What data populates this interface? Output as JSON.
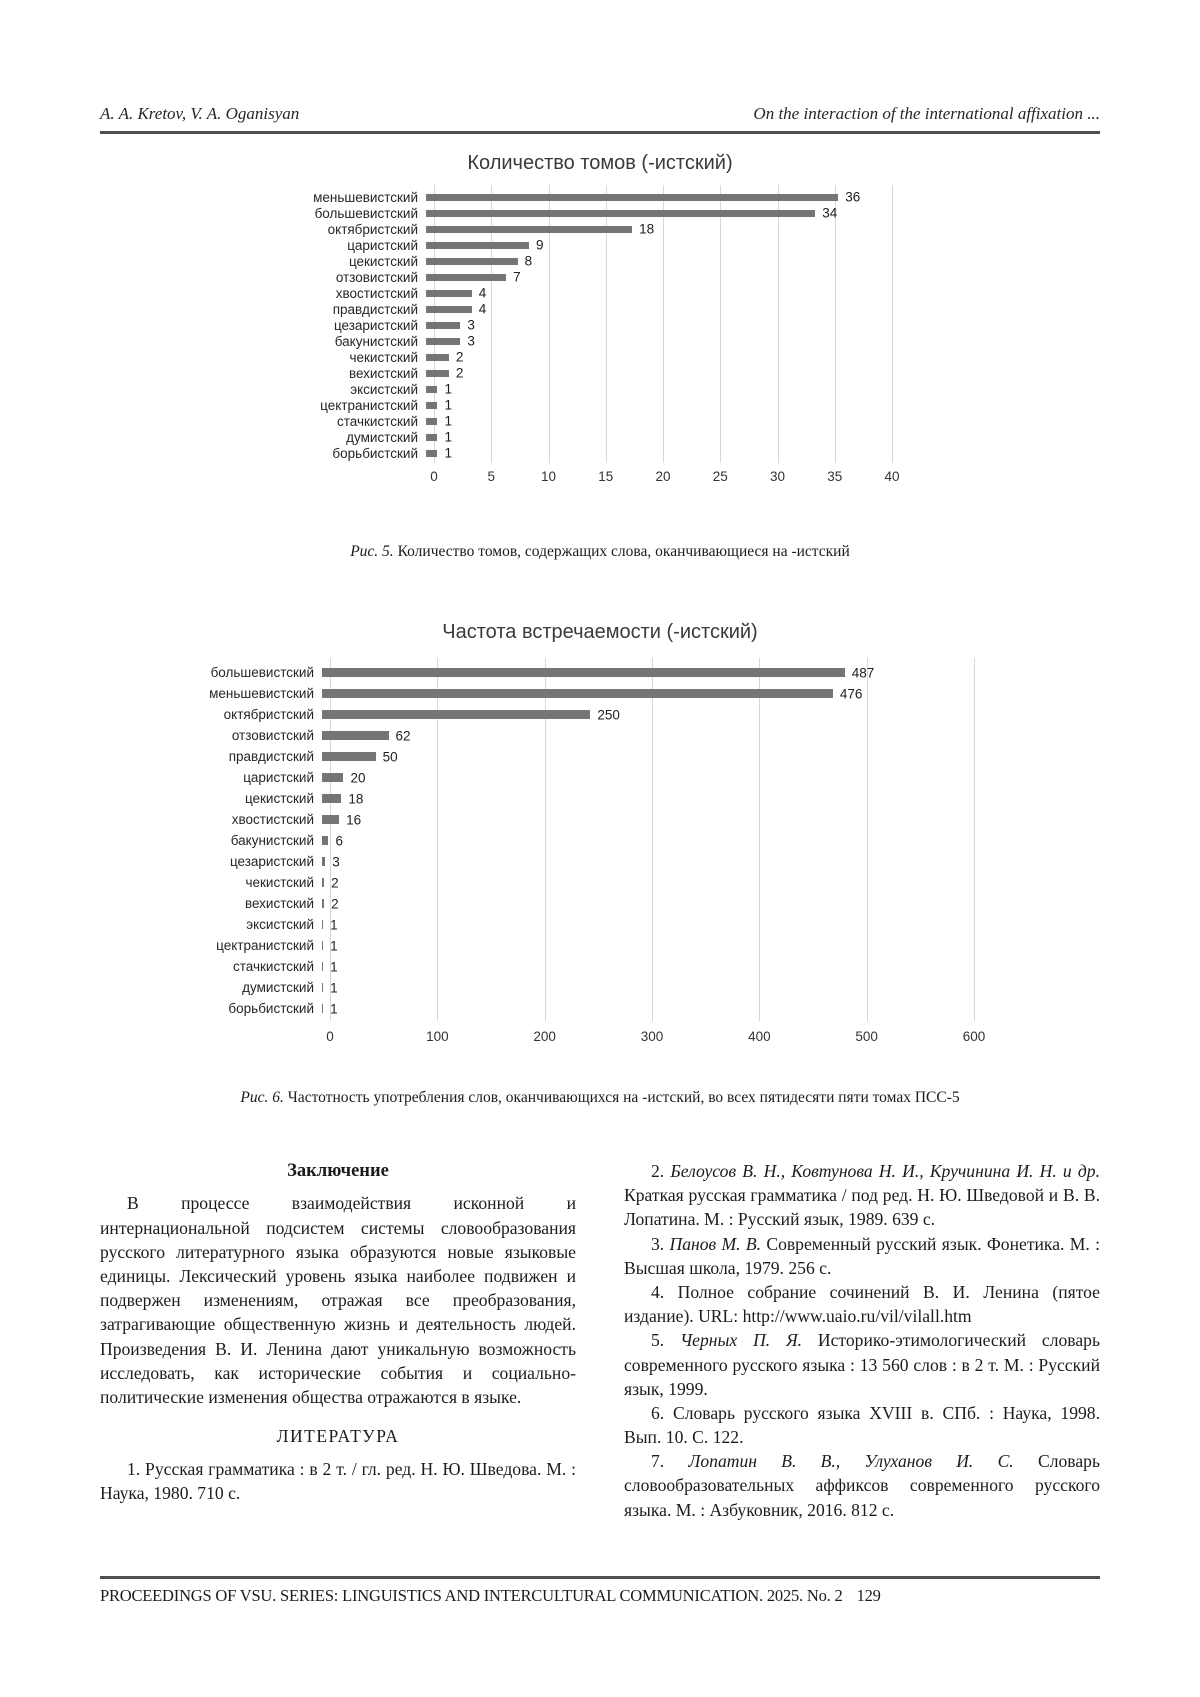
{
  "header": {
    "authors": "A. A. Kretov, V. A. Oganisyan",
    "running_title": "On the interaction of the international affixation ..."
  },
  "chart_data": [
    {
      "type": "bar",
      "orientation": "horizontal",
      "title": "Количество томов (-истский)",
      "categories": [
        "меньшевистский",
        "большевистский",
        "октябристский",
        "царистский",
        "цекистский",
        "отзовистский",
        "хвостистский",
        "правдистский",
        "цезаристский",
        "бакунистский",
        "чекистский",
        "вехистский",
        "эксистский",
        "цектранистский",
        "стачкистский",
        "думистский",
        "борьбистский"
      ],
      "values": [
        36,
        34,
        18,
        9,
        8,
        7,
        4,
        4,
        3,
        3,
        2,
        2,
        1,
        1,
        1,
        1,
        1
      ],
      "xlabel": "",
      "ylabel": "",
      "xlim": [
        0,
        40
      ],
      "xticks": [
        0,
        5,
        10,
        15,
        20,
        25,
        30,
        35,
        40
      ],
      "grid": true,
      "legend": false,
      "bar_color": "#757575"
    },
    {
      "type": "bar",
      "orientation": "horizontal",
      "title": "Частота встречаемости (-истский)",
      "categories": [
        "большевистский",
        "меньшевистский",
        "октябристский",
        "отзовистский",
        "правдистский",
        "царистский",
        "цекистский",
        "хвостистский",
        "бакунистский",
        "цезаристский",
        "чекистский",
        "вехистский",
        "эксистский",
        "цектранистский",
        "стачкистский",
        "думистский",
        "борьбистский"
      ],
      "values": [
        487,
        476,
        250,
        62,
        50,
        20,
        18,
        16,
        6,
        3,
        2,
        2,
        1,
        1,
        1,
        1,
        1
      ],
      "xlabel": "",
      "ylabel": "",
      "xlim": [
        0,
        600
      ],
      "xticks": [
        0,
        100,
        200,
        300,
        400,
        500,
        600
      ],
      "grid": true,
      "legend": false,
      "bar_color": "#757575"
    }
  ],
  "captions": {
    "fig5_label": "Рис. 5.",
    "fig5_text": "Количество томов, содержащих слова, оканчивающиеся на -истский",
    "fig6_label": "Рис. 6.",
    "fig6_text": "Частотность употребления слов, оканчивающихся на -истский, во всех пятидесяти пяти томах ПСС-5"
  },
  "conclusion": {
    "heading": "Заключение",
    "paragraph": "В процессе взаимодействия исконной и интернациональной подсистем системы словообразования русского литературного языка образуются новые языковые единицы. Лексический уровень языка наиболее подвижен и подвержен изменениям, отражая все преобразования, затрагивающие общественную жизнь и деятельность людей. Произведения В. И. Ленина дают уникальную возможность исследовать, как исторические события и социально-политические изменения общества отражаются в языке."
  },
  "literature": {
    "heading": "ЛИТЕРАТУРА",
    "items_left": [
      {
        "num": "1.",
        "authors": "",
        "text": "Русская грамматика : в 2 т. / гл. ред. Н. Ю. Шведова. М. : Наука, 1980.  710 с."
      }
    ],
    "items_right": [
      {
        "num": "2.",
        "authors": "Белоусов В. Н., Ковтунова Н. И., Кручинина И. Н. и др.",
        "text": "Краткая русская грамматика / под ред. Н. Ю. Шведовой и В. В. Лопатина. М. : Русский язык, 1989. 639 с."
      },
      {
        "num": "3.",
        "authors": "Панов М. В.",
        "text": "Современный русский язык. Фонетика. М. : Высшая школа, 1979. 256 с."
      },
      {
        "num": "4.",
        "authors": "",
        "text": "Полное собрание сочинений В. И. Ленина (пятое издание). URL: http://www.uaio.ru/vil/vilall.htm"
      },
      {
        "num": "5.",
        "authors": "Черных П. Я.",
        "text": "Историко-этимологический словарь современного русского языка : 13 560 слов : в 2 т. М. : Русский язык, 1999."
      },
      {
        "num": "6.",
        "authors": "",
        "text": "Словарь русского языка XVIII в. СПб. : Наука, 1998. Вып. 10. С. 122."
      },
      {
        "num": "7.",
        "authors": "Лопатин В. В., Улуханов И. С.",
        "text": "Словарь словообразовательных аффиксов современного русского языка. М. : Азбуковник, 2016. 812 с."
      }
    ]
  },
  "footer": {
    "text": "PROCEEDINGS OF VSU. SERIES: LINGUISTICS AND INTERCULTURAL COMMUNICATION. 2025. No. 2",
    "page": "129"
  }
}
